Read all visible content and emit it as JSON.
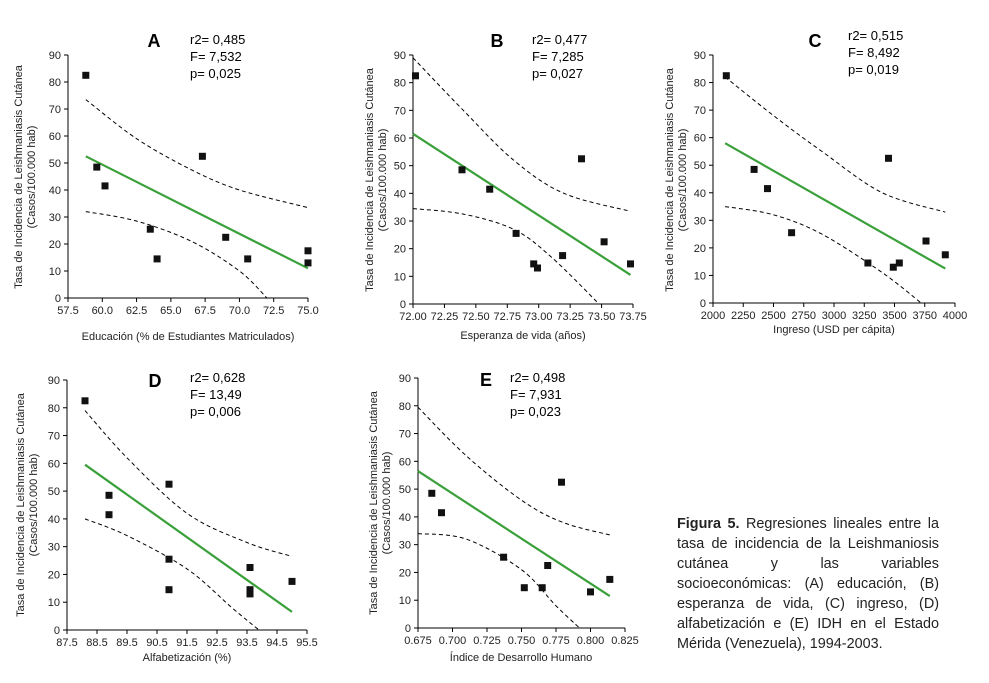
{
  "caption": {
    "label": "Figura 5.",
    "text": "Regresiones lineales entre la tasa de incidencia de la Leishmaniosis cutánea y las variables socioeconómicas: (A) educación, (B) esperanza de vida, (C) ingreso, (D) alfabetización e (E) IDH en el Estado Mérida (Venezuela), 1994-2003."
  },
  "chart_data": [
    {
      "id": "A",
      "type": "scatter",
      "panel_label": "A",
      "stats": [
        "r2= 0,485",
        "F= 7,532",
        "p= 0,025"
      ],
      "xlabel": "Educación (% de Estudiantes Matriculados)",
      "ylabel": [
        "Tasa de Incidencia de Leishmaniasis Cutánea",
        "(Casos/100.000 hab)"
      ],
      "xlim": [
        57.5,
        75.0
      ],
      "ylim": [
        0,
        90
      ],
      "xticks": [
        57.5,
        60.0,
        62.5,
        65.0,
        67.5,
        70.0,
        72.5,
        75.0
      ],
      "xtick_labels": [
        "57.5",
        "60.0",
        "62.5",
        "65.0",
        "67.5",
        "70.0",
        "72.5",
        "75.0"
      ],
      "yticks": [
        0,
        10,
        20,
        30,
        40,
        50,
        60,
        70,
        80,
        90
      ],
      "ytick_labels": [
        "0",
        "10",
        "20",
        "30",
        "40",
        "50",
        "60",
        "70",
        "80",
        "90"
      ],
      "points": [
        [
          58.8,
          82.5
        ],
        [
          59.6,
          48.5
        ],
        [
          60.2,
          41.5
        ],
        [
          63.5,
          25.5
        ],
        [
          64.0,
          14.5
        ],
        [
          67.3,
          52.5
        ],
        [
          69.0,
          22.5
        ],
        [
          70.6,
          14.5
        ],
        [
          75.0,
          17.5
        ],
        [
          75.0,
          13.0
        ]
      ],
      "regression": [
        [
          58.8,
          52.5
        ],
        [
          75.0,
          11.0
        ]
      ],
      "ci_upper": [
        [
          58.8,
          73.5
        ],
        [
          62.5,
          59.0
        ],
        [
          66.5,
          47.5
        ],
        [
          70.0,
          40.0
        ],
        [
          75.0,
          33.5
        ]
      ],
      "ci_lower": [
        [
          58.8,
          32.0
        ],
        [
          62.5,
          28.5
        ],
        [
          66.5,
          21.0
        ],
        [
          70.0,
          10.0
        ],
        [
          72.0,
          0.0
        ]
      ]
    },
    {
      "id": "B",
      "type": "scatter",
      "panel_label": "B",
      "stats": [
        "r2= 0,477",
        "F= 7,285",
        "p= 0,027"
      ],
      "xlabel": "Esperanza de vida (años)",
      "ylabel": [
        "Tasa de Incidencia de Leishmaniasis Cutánea",
        "(Casos/100.000 hab)"
      ],
      "xlim": [
        72.0,
        73.75
      ],
      "ylim": [
        0,
        90
      ],
      "xticks": [
        72.0,
        72.25,
        72.5,
        72.75,
        73.0,
        73.25,
        73.5,
        73.75
      ],
      "xtick_labels": [
        "72.00",
        "72.25",
        "72.50",
        "72.75",
        "73.00",
        "73.25",
        "73.50",
        "73.75"
      ],
      "yticks": [
        0,
        10,
        20,
        30,
        40,
        50,
        60,
        70,
        80,
        90
      ],
      "ytick_labels": [
        "0",
        "10",
        "20",
        "30",
        "40",
        "50",
        "60",
        "70",
        "80",
        "90"
      ],
      "points": [
        [
          72.02,
          82.5
        ],
        [
          72.39,
          48.5
        ],
        [
          72.61,
          41.5
        ],
        [
          72.82,
          25.5
        ],
        [
          72.96,
          14.5
        ],
        [
          72.99,
          13.0
        ],
        [
          73.19,
          17.5
        ],
        [
          73.34,
          52.5
        ],
        [
          73.52,
          22.5
        ],
        [
          73.73,
          14.5
        ]
      ],
      "regression": [
        [
          72.0,
          61.5
        ],
        [
          73.73,
          10.5
        ]
      ],
      "ci_upper": [
        [
          72.0,
          89.0
        ],
        [
          72.4,
          70.0
        ],
        [
          72.8,
          52.0
        ],
        [
          73.2,
          40.0
        ],
        [
          73.73,
          33.5
        ]
      ],
      "ci_lower": [
        [
          72.0,
          34.5
        ],
        [
          72.4,
          32.5
        ],
        [
          72.8,
          27.0
        ],
        [
          73.1,
          17.0
        ],
        [
          73.48,
          0.0
        ]
      ]
    },
    {
      "id": "C",
      "type": "scatter",
      "panel_label": "C",
      "stats": [
        "r2= 0,515",
        "F= 8,492",
        "p= 0,019"
      ],
      "xlabel": "Ingreso (USD per cápita)",
      "ylabel": [
        "Tasa de Incidencia de Leishmaniasis Cutánea",
        "(Casos/100.000 hab)"
      ],
      "xlim": [
        2000,
        4000
      ],
      "ylim": [
        0,
        90
      ],
      "xticks": [
        2000,
        2250,
        2500,
        2750,
        3000,
        3250,
        3500,
        3750,
        4000
      ],
      "xtick_labels": [
        "2000",
        "2250",
        "2500",
        "2750",
        "3000",
        "3250",
        "3500",
        "3750",
        "4000"
      ],
      "yticks": [
        0,
        10,
        20,
        30,
        40,
        50,
        60,
        70,
        80,
        90
      ],
      "ytick_labels": [
        "0",
        "10",
        "20",
        "30",
        "40",
        "50",
        "60",
        "70",
        "80",
        "90"
      ],
      "points": [
        [
          2110,
          82.5
        ],
        [
          2340,
          48.5
        ],
        [
          2450,
          41.5
        ],
        [
          2650,
          25.5
        ],
        [
          3280,
          14.5
        ],
        [
          3450,
          52.5
        ],
        [
          3490,
          13.0
        ],
        [
          3540,
          14.5
        ],
        [
          3760,
          22.5
        ],
        [
          3920,
          17.5
        ]
      ],
      "regression": [
        [
          2100,
          58.0
        ],
        [
          3920,
          12.5
        ]
      ],
      "ci_upper": [
        [
          2100,
          82.0
        ],
        [
          2500,
          68.0
        ],
        [
          2900,
          55.0
        ],
        [
          3400,
          40.0
        ],
        [
          3920,
          33.0
        ]
      ],
      "ci_lower": [
        [
          2100,
          35.0
        ],
        [
          2500,
          32.0
        ],
        [
          2900,
          25.0
        ],
        [
          3400,
          11.0
        ],
        [
          3720,
          0.0
        ]
      ]
    },
    {
      "id": "D",
      "type": "scatter",
      "panel_label": "D",
      "stats": [
        "r2= 0,628",
        "F= 13,49",
        "p= 0,006"
      ],
      "xlabel": "Alfabetización (%)",
      "ylabel": [
        "Tasa de Incidencia de Leishmaniasis Cutánea",
        "(Casos/100.000 hab)"
      ],
      "xlim": [
        87.5,
        95.5
      ],
      "ylim": [
        0,
        90
      ],
      "xticks": [
        87.5,
        88.5,
        89.5,
        90.5,
        91.5,
        92.5,
        93.5,
        94.5,
        95.5
      ],
      "xtick_labels": [
        "87.5",
        "88.5",
        "89.5",
        "90.5",
        "91.5",
        "92.5",
        "93.5",
        "94.5",
        "95.5"
      ],
      "yticks": [
        0,
        10,
        20,
        30,
        40,
        50,
        60,
        70,
        80,
        90
      ],
      "ytick_labels": [
        "0",
        "10",
        "20",
        "30",
        "40",
        "50",
        "60",
        "70",
        "80",
        "90"
      ],
      "points": [
        [
          88.1,
          82.5
        ],
        [
          88.9,
          48.5
        ],
        [
          88.9,
          41.5
        ],
        [
          90.9,
          52.5
        ],
        [
          90.9,
          25.5
        ],
        [
          90.9,
          14.5
        ],
        [
          93.6,
          22.5
        ],
        [
          93.6,
          14.5
        ],
        [
          93.6,
          13.0
        ],
        [
          95.0,
          17.5
        ]
      ],
      "regression": [
        [
          88.1,
          59.5
        ],
        [
          95.0,
          6.5
        ]
      ],
      "ci_upper": [
        [
          88.1,
          79.0
        ],
        [
          89.5,
          62.0
        ],
        [
          91.5,
          42.0
        ],
        [
          93.5,
          31.5
        ],
        [
          95.0,
          26.5
        ]
      ],
      "ci_lower": [
        [
          88.1,
          40.0
        ],
        [
          89.5,
          34.0
        ],
        [
          91.5,
          22.0
        ],
        [
          93.0,
          8.0
        ],
        [
          93.9,
          0.0
        ]
      ]
    },
    {
      "id": "E",
      "type": "scatter",
      "panel_label": "E",
      "stats": [
        "r2= 0,498",
        "F= 7,931",
        "p= 0,023"
      ],
      "xlabel": "Índice de Desarrollo Humano",
      "ylabel": [
        "Tasa de Incidencia de Leishmaniasis Cutánea",
        "(Casos/100.000 hab)"
      ],
      "xlim": [
        0.675,
        0.825
      ],
      "ylim": [
        0,
        90
      ],
      "xticks": [
        0.675,
        0.7,
        0.725,
        0.75,
        0.775,
        0.8,
        0.825
      ],
      "xtick_labels": [
        "0.675",
        "0.700",
        "0.725",
        "0.750",
        "0.775",
        "0.800",
        "0.825"
      ],
      "yticks": [
        0,
        10,
        20,
        30,
        40,
        50,
        60,
        70,
        80,
        90
      ],
      "ytick_labels": [
        "0",
        "10",
        "20",
        "30",
        "40",
        "50",
        "60",
        "70",
        "80",
        "90"
      ],
      "points": [
        [
          0.685,
          48.5
        ],
        [
          0.692,
          41.5
        ],
        [
          0.737,
          25.5
        ],
        [
          0.752,
          14.5
        ],
        [
          0.765,
          14.5
        ],
        [
          0.769,
          22.5
        ],
        [
          0.779,
          52.5
        ],
        [
          0.8,
          13.0
        ],
        [
          0.814,
          17.5
        ]
      ],
      "regression": [
        [
          0.675,
          56.5
        ],
        [
          0.814,
          11.5
        ]
      ],
      "ci_upper": [
        [
          0.675,
          79.5
        ],
        [
          0.71,
          62.0
        ],
        [
          0.75,
          46.0
        ],
        [
          0.78,
          38.0
        ],
        [
          0.814,
          33.5
        ]
      ],
      "ci_lower": [
        [
          0.675,
          34.0
        ],
        [
          0.71,
          32.0
        ],
        [
          0.75,
          21.0
        ],
        [
          0.775,
          8.0
        ],
        [
          0.792,
          0.0
        ]
      ]
    }
  ]
}
